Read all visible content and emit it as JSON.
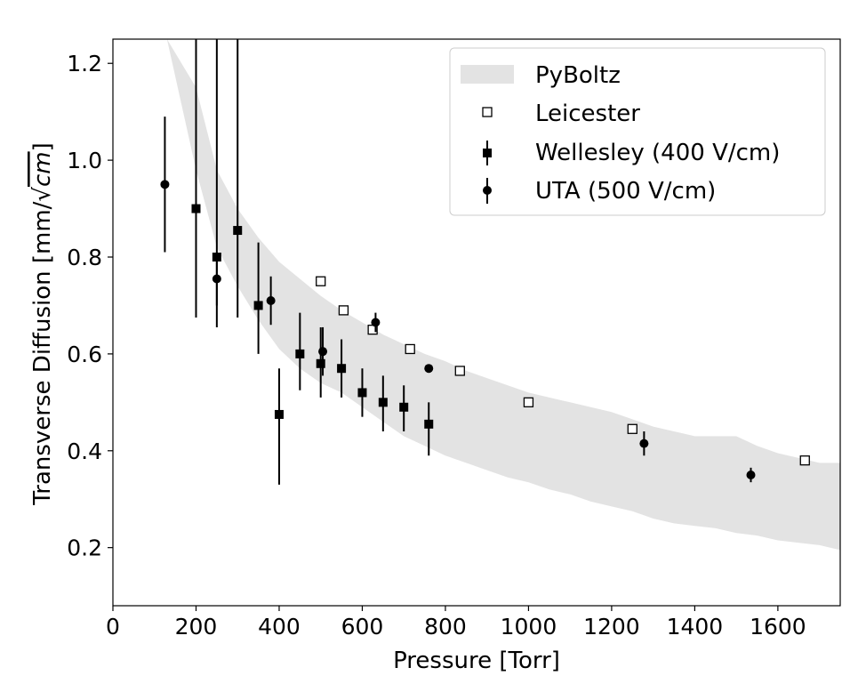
{
  "chart_data": {
    "type": "scatter",
    "xlabel": "Pressure [Torr]",
    "ylabel": "Transverse Diffusion [mm/√cm]",
    "ylabel_main": "Transverse Diffusion [mm/",
    "ylabel_radical": "√",
    "ylabel_radicand": "cm",
    "ylabel_close": "]",
    "xlim": [
      0,
      1750
    ],
    "ylim": [
      0.08,
      1.25
    ],
    "xticks": [
      0,
      200,
      400,
      600,
      800,
      1000,
      1200,
      1400,
      1600
    ],
    "xtick_labels": [
      "0",
      "200",
      "400",
      "600",
      "800",
      "1000",
      "1200",
      "1400",
      "1600"
    ],
    "yticks": [
      0.2,
      0.4,
      0.6,
      0.8,
      1.0,
      1.2
    ],
    "ytick_labels": [
      "0.2",
      "0.4",
      "0.6",
      "0.8",
      "1.0",
      "1.2"
    ],
    "grid": false,
    "legend_position": "top-right",
    "colors": {
      "band": "#e3e3e3",
      "marker": "#000000"
    },
    "band": {
      "name": "PyBoltz",
      "x": [
        130,
        200,
        250,
        300,
        350,
        400,
        450,
        500,
        550,
        600,
        650,
        700,
        750,
        800,
        850,
        900,
        950,
        1000,
        1050,
        1100,
        1150,
        1200,
        1250,
        1300,
        1350,
        1400,
        1450,
        1500,
        1550,
        1600,
        1650,
        1700,
        1750
      ],
      "upper": [
        1.25,
        1.15,
        0.98,
        0.9,
        0.84,
        0.79,
        0.755,
        0.72,
        0.69,
        0.665,
        0.64,
        0.62,
        0.6,
        0.585,
        0.565,
        0.55,
        0.535,
        0.52,
        0.51,
        0.5,
        0.49,
        0.48,
        0.465,
        0.45,
        0.44,
        0.43,
        0.43,
        0.43,
        0.41,
        0.395,
        0.385,
        0.375,
        0.375
      ],
      "lower": [
        1.25,
        0.98,
        0.82,
        0.74,
        0.67,
        0.61,
        0.57,
        0.54,
        0.52,
        0.49,
        0.46,
        0.43,
        0.41,
        0.39,
        0.375,
        0.36,
        0.345,
        0.335,
        0.32,
        0.31,
        0.295,
        0.285,
        0.275,
        0.26,
        0.25,
        0.245,
        0.24,
        0.23,
        0.225,
        0.215,
        0.21,
        0.205,
        0.195
      ]
    },
    "series": [
      {
        "name": "Leicester",
        "marker": "open-square",
        "x": [
          500,
          555,
          625,
          715,
          835,
          1000,
          1250,
          1665
        ],
        "y": [
          0.75,
          0.69,
          0.65,
          0.61,
          0.565,
          0.5,
          0.445,
          0.38
        ]
      },
      {
        "name": "Wellesley (400 V/cm)",
        "marker": "filled-square",
        "x": [
          200,
          250,
          300,
          350,
          400,
          450,
          500,
          550,
          600,
          650,
          700,
          760
        ],
        "y": [
          0.9,
          0.8,
          0.855,
          0.7,
          0.475,
          0.6,
          0.58,
          0.57,
          0.52,
          0.5,
          0.49,
          0.455
        ],
        "err_lo": [
          0.225,
          0.145,
          0.18,
          0.1,
          0.145,
          0.075,
          0.07,
          0.06,
          0.05,
          0.06,
          0.05,
          0.065
        ],
        "err_hi": [
          0.36,
          0.46,
          0.41,
          0.13,
          0.095,
          0.085,
          0.075,
          0.06,
          0.05,
          0.055,
          0.045,
          0.045
        ]
      },
      {
        "name": "UTA (500 V/cm)",
        "marker": "filled-circle",
        "x": [
          125,
          250,
          380,
          505,
          632,
          760,
          1278,
          1535
        ],
        "y": [
          0.95,
          0.755,
          0.71,
          0.605,
          0.665,
          0.57,
          0.415,
          0.35
        ],
        "err_lo": [
          0.14,
          0.055,
          0.05,
          0.05,
          0.02,
          0.0,
          0.025,
          0.015
        ],
        "err_hi": [
          0.14,
          0.055,
          0.05,
          0.05,
          0.02,
          0.0,
          0.025,
          0.015
        ]
      }
    ]
  }
}
